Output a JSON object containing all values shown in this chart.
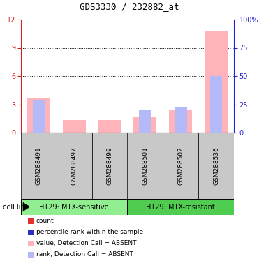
{
  "title": "GDS3330 / 232882_at",
  "samples": [
    "GSM288491",
    "GSM288497",
    "GSM288499",
    "GSM288501",
    "GSM288502",
    "GSM288536"
  ],
  "value_absent": [
    3.6,
    1.3,
    1.3,
    1.6,
    2.4,
    10.8
  ],
  "rank_absent": [
    29.0,
    0.0,
    0.0,
    20.0,
    22.0,
    50.0
  ],
  "ylim_left": [
    0,
    12
  ],
  "ylim_right": [
    0,
    100
  ],
  "yticks_left": [
    0,
    3,
    6,
    9,
    12
  ],
  "yticks_right": [
    0,
    25,
    50,
    75,
    100
  ],
  "yticklabels_right": [
    "0",
    "25",
    "50",
    "75",
    "100%"
  ],
  "group1_label": "HT29: MTX-sensitive",
  "group2_label": "HT29: MTX-resistant",
  "cell_line_label": "cell line",
  "color_value_absent": "#FFB3BA",
  "color_rank_absent": "#B3BAF7",
  "color_count": "#E03030",
  "color_rank": "#3030C0",
  "bar_bg_color": "#C8C8C8",
  "group1_bg": "#90EE90",
  "group2_bg": "#50CD50",
  "axis_left_color": "#CC2222",
  "axis_right_color": "#2222CC",
  "legend_items": [
    {
      "color": "#E03030",
      "label": "count"
    },
    {
      "color": "#3030C0",
      "label": "percentile rank within the sample"
    },
    {
      "color": "#FFB3BA",
      "label": "value, Detection Call = ABSENT"
    },
    {
      "color": "#B3BAF7",
      "label": "rank, Detection Call = ABSENT"
    }
  ]
}
